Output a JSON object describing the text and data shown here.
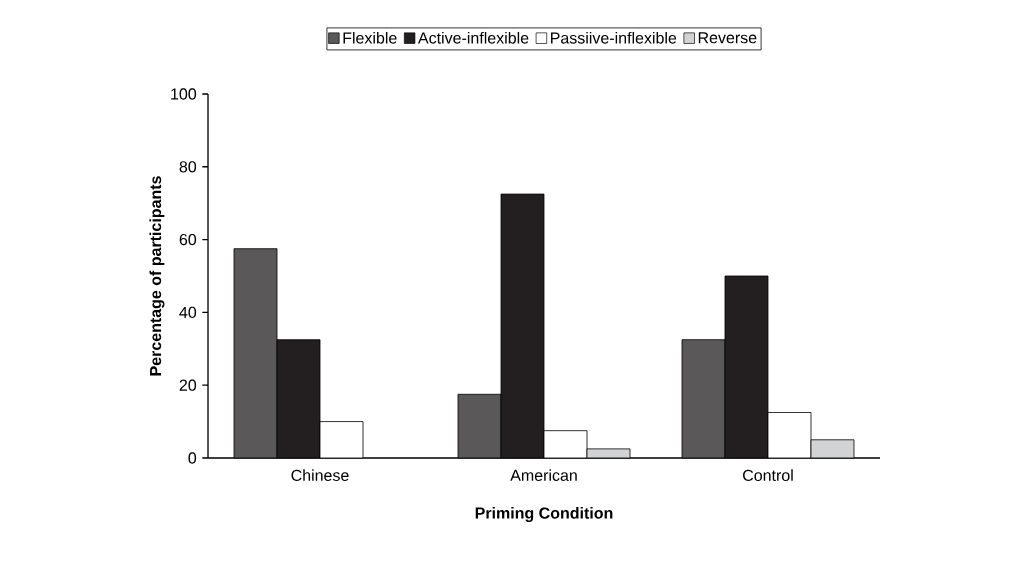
{
  "chart_data": {
    "type": "bar",
    "xlabel": "Priming Condition",
    "ylabel": "Percentage of participants",
    "categories": [
      "Chinese",
      "American",
      "Control"
    ],
    "series": [
      {
        "name": "Flexible",
        "color": "#5a5859",
        "values": [
          57.5,
          17.5,
          32.5
        ]
      },
      {
        "name": "Active-inflexible",
        "color": "#231f20",
        "values": [
          32.5,
          72.5,
          50
        ]
      },
      {
        "name": "Passiive-inflexible",
        "color": "#ffffff",
        "values": [
          10,
          7.5,
          12.5
        ]
      },
      {
        "name": "Reverse",
        "color": "#d1d3d4",
        "values": [
          0,
          2.5,
          5
        ]
      }
    ],
    "ylim": [
      0,
      100
    ],
    "yticks": [
      0,
      20,
      40,
      60,
      80,
      100
    ],
    "legend": "top"
  }
}
